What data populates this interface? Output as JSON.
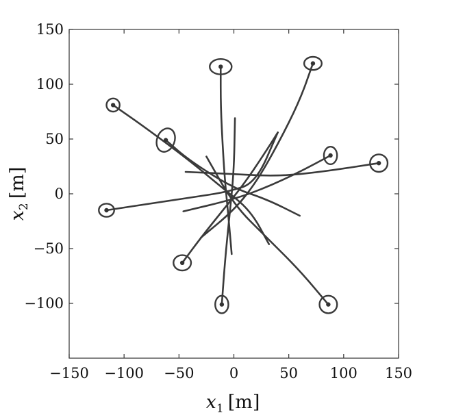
{
  "chart_data": {
    "type": "line",
    "title": "",
    "xlabel": {
      "var": "x",
      "sub": "1",
      "unit": "[m]"
    },
    "ylabel": {
      "var": "x",
      "sub": "2",
      "unit": "[m]"
    },
    "xlim": [
      -150,
      150
    ],
    "ylim": [
      -150,
      150
    ],
    "xticks": [
      -150,
      -100,
      -50,
      0,
      50,
      100,
      150
    ],
    "yticks": [
      -100,
      -50,
      0,
      50,
      100,
      150
    ],
    "xtick_labels": [
      "−150",
      "−100",
      "−50",
      "0",
      "50",
      "100",
      "150"
    ],
    "ytick_labels": [
      "−100",
      "−50",
      "0",
      "50",
      "100",
      "150"
    ],
    "grid": false,
    "series": [
      {
        "points": [
          [
            -12,
            116
          ],
          [
            -12,
            80
          ],
          [
            -10,
            40
          ],
          [
            -8,
            10
          ],
          [
            -5,
            -20
          ],
          [
            -2,
            -55
          ]
        ],
        "end": [
          -12,
          116
        ],
        "ellipse": {
          "rx": 10,
          "ry": 7,
          "rot": 0
        }
      },
      {
        "points": [
          [
            72,
            119
          ],
          [
            60,
            85
          ],
          [
            40,
            45
          ],
          [
            20,
            10
          ],
          [
            0,
            -15
          ],
          [
            -30,
            -40
          ]
        ],
        "end": [
          72,
          119
        ],
        "ellipse": {
          "rx": 8,
          "ry": 6,
          "rot": 0
        }
      },
      {
        "points": [
          [
            -110,
            81
          ],
          [
            -80,
            60
          ],
          [
            -40,
            30
          ],
          [
            -10,
            5
          ],
          [
            15,
            -15
          ],
          [
            32,
            -46
          ]
        ],
        "end": [
          -110,
          81
        ],
        "ellipse": {
          "rx": 6,
          "ry": 6,
          "rot": -40
        }
      },
      {
        "points": [
          [
            -62,
            49
          ],
          [
            -40,
            30
          ],
          [
            0,
            5
          ],
          [
            30,
            -5
          ],
          [
            60,
            -20
          ]
        ],
        "end": [
          -62,
          49
        ],
        "ellipse": {
          "rx": 8,
          "ry": 11,
          "rot": 20
        }
      },
      {
        "points": [
          [
            132,
            28
          ],
          [
            80,
            20
          ],
          [
            40,
            16
          ],
          [
            0,
            18
          ],
          [
            -44,
            20
          ]
        ],
        "end": [
          132,
          28
        ],
        "ellipse": {
          "rx": 8,
          "ry": 8,
          "rot": 0
        }
      },
      {
        "points": [
          [
            88,
            35
          ],
          [
            60,
            20
          ],
          [
            30,
            6
          ],
          [
            0,
            -5
          ],
          [
            -46,
            -16
          ]
        ],
        "end": [
          88,
          35
        ],
        "ellipse": {
          "rx": 6,
          "ry": 8,
          "rot": 0
        }
      },
      {
        "points": [
          [
            -116,
            -15
          ],
          [
            -70,
            -8
          ],
          [
            -30,
            -2
          ],
          [
            -5,
            2
          ],
          [
            20,
            10
          ],
          [
            40,
            56
          ]
        ],
        "end": [
          -116,
          -15
        ],
        "ellipse": {
          "rx": 7,
          "ry": 6,
          "rot": 0
        }
      },
      {
        "points": [
          [
            -47,
            -63
          ],
          [
            -30,
            -40
          ],
          [
            -10,
            -15
          ],
          [
            10,
            10
          ],
          [
            30,
            40
          ],
          [
            40,
            56
          ]
        ],
        "end": [
          -47,
          -63
        ],
        "ellipse": {
          "rx": 8,
          "ry": 7,
          "rot": 0
        }
      },
      {
        "points": [
          [
            -11,
            -101
          ],
          [
            -8,
            -60
          ],
          [
            -4,
            -20
          ],
          [
            0,
            20
          ],
          [
            1,
            69
          ]
        ],
        "end": [
          -11,
          -101
        ],
        "ellipse": {
          "rx": 6,
          "ry": 8,
          "rot": 0
        }
      },
      {
        "points": [
          [
            86,
            -101
          ],
          [
            60,
            -70
          ],
          [
            30,
            -40
          ],
          [
            0,
            -10
          ],
          [
            -25,
            34
          ]
        ],
        "end": [
          86,
          -101
        ],
        "ellipse": {
          "rx": 8,
          "ry": 8,
          "rot": 0
        }
      }
    ]
  }
}
